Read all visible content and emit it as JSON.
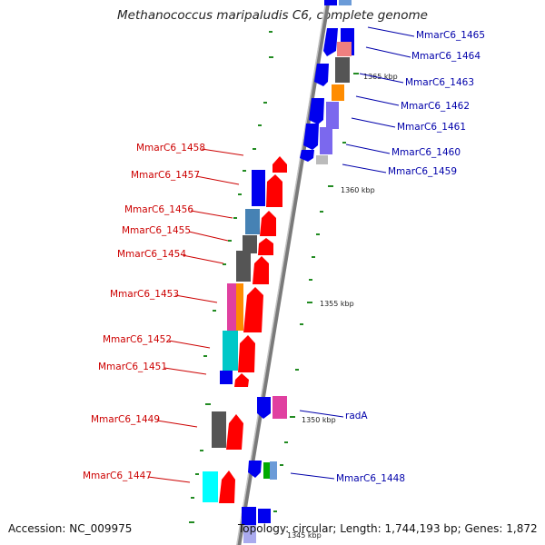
{
  "title": "Methanococcus maripaludis C6, complete genome",
  "accession_text": "Accession: NC_009975",
  "summary_text": "Topology: circular; Length: 1,744,193 bp; Genes: 1,872",
  "scale_labels": {
    "kbp_1365": "1365 kbp",
    "kbp_1360": "1360 kbp",
    "kbp_1355": "1355 kbp",
    "kbp_1350": "1350 kbp",
    "kbp_1345": "1345 kbp"
  },
  "left_labels": {
    "g1458": "MmarC6_1458",
    "g1457": "MmarC6_1457",
    "g1456": "MmarC6_1456",
    "g1455": "MmarC6_1455",
    "g1454": "MmarC6_1454",
    "g1453": "MmarC6_1453",
    "g1452": "MmarC6_1452",
    "g1451": "MmarC6_1451",
    "g1449": "MmarC6_1449",
    "g1447": "MmarC6_1447"
  },
  "right_labels": {
    "g1465": "MmarC6_1465",
    "g1464": "MmarC6_1464",
    "g1463": "MmarC6_1463",
    "g1462": "MmarC6_1462",
    "g1461": "MmarC6_1461",
    "g1460": "MmarC6_1460",
    "g1459": "MmarC6_1459",
    "radA": "radA",
    "g1448": "MmarC6_1448"
  },
  "colors": {
    "forward_strand": "#ff0000",
    "reverse_strand": "#0000ee",
    "backbone": "#8a8a8a",
    "label_left": "#cc0000",
    "label_right": "#0000aa",
    "tick": "#228b22"
  }
}
